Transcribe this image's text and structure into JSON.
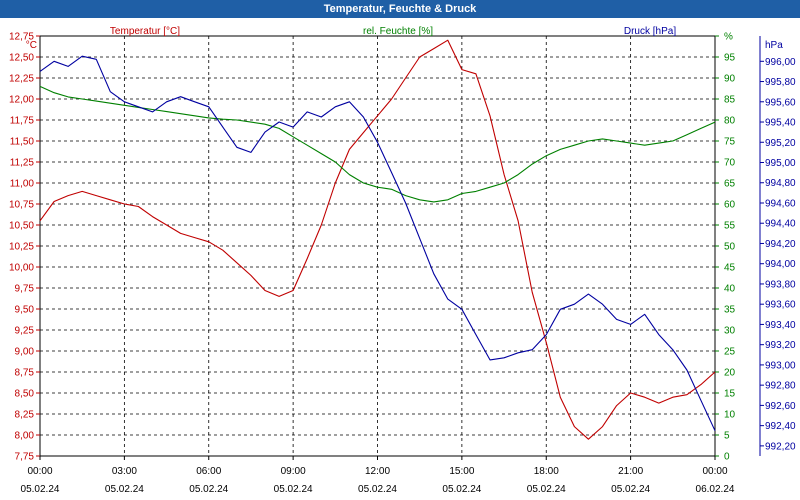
{
  "window": {
    "title": "Temperatur, Feuchte & Druck"
  },
  "chart_data": {
    "type": "line",
    "title": "Temperatur, Feuchte & Druck",
    "grid": true,
    "legend_position": "top",
    "x": {
      "range": [
        "05.02.24 00:00",
        "06.02.24 00:00"
      ],
      "tick_times": [
        "00:00",
        "03:00",
        "06:00",
        "09:00",
        "12:00",
        "15:00",
        "18:00",
        "21:00",
        "00:00"
      ],
      "tick_dates": [
        "05.02.24",
        "05.02.24",
        "05.02.24",
        "05.02.24",
        "05.02.24",
        "05.02.24",
        "05.02.24",
        "05.02.24",
        "06.02.24"
      ]
    },
    "axes": {
      "temperature": {
        "label": "Temperatur [°C]",
        "unit": "°C",
        "color": "#c00000",
        "ylim": [
          7.75,
          12.75
        ],
        "ticks": [
          "12,75",
          "12,50",
          "12,25",
          "12,00",
          "11,75",
          "11,50",
          "11,25",
          "11,00",
          "10,75",
          "10,50",
          "10,25",
          "10,00",
          "9,75",
          "9,50",
          "9,25",
          "9,00",
          "8,75",
          "8,50",
          "8,25",
          "8,00",
          "7,75"
        ]
      },
      "humidity": {
        "label": "rel. Feuchte [%]",
        "unit": "%",
        "color": "#008000",
        "ylim": [
          0,
          100
        ],
        "ticks": [
          "%",
          "95",
          "90",
          "85",
          "80",
          "75",
          "70",
          "65",
          "60",
          "55",
          "50",
          "45",
          "40",
          "35",
          "30",
          "25",
          "20",
          "15",
          "10",
          "5",
          "0"
        ]
      },
      "pressure": {
        "label": "Druck [hPa]",
        "unit": "hPa",
        "color": "#0000a0",
        "ylim": [
          992.1,
          996.25
        ],
        "ticks": [
          "996,00",
          "995,80",
          "995,60",
          "995,40",
          "995,20",
          "995,00",
          "994,80",
          "994,60",
          "994,40",
          "994,20",
          "994,00",
          "993,80",
          "993,60",
          "993,40",
          "993,20",
          "993,00",
          "992,80",
          "992,60",
          "992,40",
          "992,20"
        ]
      }
    },
    "series": [
      {
        "name": "Temperatur [°C]",
        "axis": "temperature",
        "color": "#c00000",
        "x_hours": [
          0,
          0.5,
          1,
          1.5,
          2,
          2.5,
          3,
          3.5,
          4,
          4.5,
          5,
          5.5,
          6,
          6.5,
          7,
          7.5,
          8,
          8.5,
          9,
          9.5,
          10,
          10.5,
          11,
          11.5,
          12,
          12.5,
          13,
          13.5,
          14,
          14.5,
          15,
          15.5,
          16,
          16.5,
          17,
          17.5,
          18,
          18.5,
          19,
          19.5,
          20,
          20.5,
          21,
          21.5,
          22,
          22.5,
          23,
          23.5,
          24
        ],
        "values": [
          10.55,
          10.78,
          10.85,
          10.9,
          10.85,
          10.8,
          10.75,
          10.72,
          10.6,
          10.5,
          10.4,
          10.35,
          10.3,
          10.2,
          10.05,
          9.9,
          9.72,
          9.65,
          9.72,
          10.1,
          10.5,
          11,
          11.4,
          11.6,
          11.8,
          12,
          12.25,
          12.5,
          12.6,
          12.7,
          12.35,
          12.3,
          11.8,
          11.1,
          10.55,
          9.7,
          9.1,
          8.45,
          8.1,
          7.95,
          8.1,
          8.35,
          8.5,
          8.45,
          8.38,
          8.45,
          8.48,
          8.6,
          8.75
        ]
      },
      {
        "name": "rel. Feuchte [%]",
        "axis": "humidity",
        "color": "#008000",
        "x_hours": [
          0,
          0.5,
          1,
          1.5,
          2,
          2.5,
          3,
          3.5,
          4,
          4.5,
          5,
          5.5,
          6,
          6.5,
          7,
          7.5,
          8,
          8.5,
          9,
          9.5,
          10,
          10.5,
          11,
          11.5,
          12,
          12.5,
          13,
          13.5,
          14,
          14.5,
          15,
          15.5,
          16,
          16.5,
          17,
          17.5,
          18,
          18.5,
          19,
          19.5,
          20,
          20.5,
          21,
          21.5,
          22,
          22.5,
          23,
          23.5,
          24
        ],
        "values": [
          88,
          86.5,
          85.5,
          85,
          84.5,
          84,
          83.5,
          83,
          82.5,
          82,
          81.5,
          81,
          80.5,
          80.2,
          80,
          79.5,
          79,
          78,
          76,
          74,
          72,
          70,
          67,
          65,
          64,
          63.5,
          62,
          61,
          60.5,
          61,
          62.5,
          63,
          64,
          65,
          67,
          69.5,
          71.5,
          73,
          74,
          75,
          75.5,
          75,
          74.5,
          74,
          74.5,
          75,
          76.5,
          78,
          79.5
        ]
      },
      {
        "name": "Druck [hPa]",
        "axis": "pressure",
        "color": "#0000a0",
        "x_hours": [
          0,
          0.5,
          1,
          1.5,
          2,
          2.5,
          3,
          3.5,
          4,
          4.5,
          5,
          5.5,
          6,
          6.5,
          7,
          7.5,
          8,
          8.5,
          9,
          9.5,
          10,
          10.5,
          11,
          11.5,
          12,
          12.5,
          13,
          13.5,
          14,
          14.5,
          15,
          15.5,
          16,
          16.5,
          17,
          17.5,
          18,
          18.5,
          19,
          19.5,
          20,
          20.5,
          21,
          21.5,
          22,
          22.5,
          23,
          23.5,
          24
        ],
        "values": [
          995.9,
          996,
          995.95,
          996.05,
          996.02,
          995.7,
          995.6,
          995.55,
          995.5,
          995.6,
          995.65,
          995.6,
          995.55,
          995.35,
          995.15,
          995.1,
          995.3,
          995.4,
          995.35,
          995.5,
          995.45,
          995.55,
          995.6,
          995.45,
          995.2,
          994.9,
          994.6,
          994.25,
          993.9,
          993.65,
          993.55,
          993.3,
          993.05,
          993.07,
          993.12,
          993.15,
          993.3,
          993.55,
          993.6,
          993.7,
          993.6,
          993.45,
          993.4,
          993.5,
          993.3,
          993.15,
          992.95,
          992.65,
          992.35
        ]
      }
    ]
  }
}
